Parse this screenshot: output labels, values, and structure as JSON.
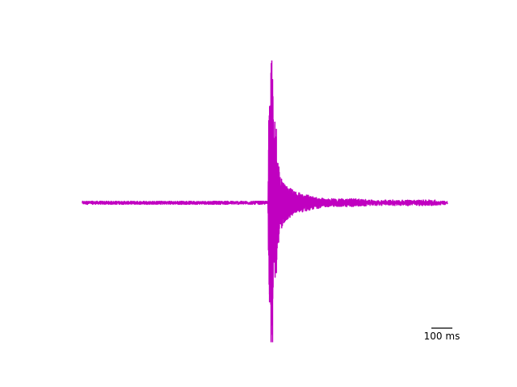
{
  "chart_data": {
    "type": "line",
    "title": "",
    "xlabel": "",
    "ylabel": "",
    "axes_visible": false,
    "grid": false,
    "line_color": "#c000c0",
    "xlim": [
      0,
      2400
    ],
    "ylim": [
      -1.0,
      1.0
    ],
    "series": [
      {
        "x": [
          0,
          1220,
          1225,
          1230,
          1235,
          1240,
          1245,
          1250,
          1255,
          1260,
          1265,
          1270,
          1275,
          1280,
          1285,
          1290,
          1300,
          1310,
          1320,
          1340,
          1360,
          1380,
          1400,
          1430,
          1460,
          1500,
          1550,
          1600,
          1700,
          1800,
          1900,
          2000,
          2100,
          2200,
          2300,
          2400
        ],
        "values": [
          0,
          0,
          0.58,
          -0.7,
          0.6,
          -0.98,
          1.0,
          -0.98,
          0.55,
          -0.42,
          0.57,
          -0.45,
          0.52,
          -0.32,
          0.28,
          -0.28,
          0.18,
          -0.18,
          0.14,
          -0.12,
          0.1,
          -0.09,
          0.07,
          -0.06,
          0.05,
          -0.04,
          0.03,
          -0.02,
          0.02,
          -0.02,
          0.01,
          -0.01,
          0.01,
          -0.01,
          0.01,
          0
        ]
      }
    ],
    "scalebar": {
      "label": "100 ms",
      "value": 100
    }
  }
}
